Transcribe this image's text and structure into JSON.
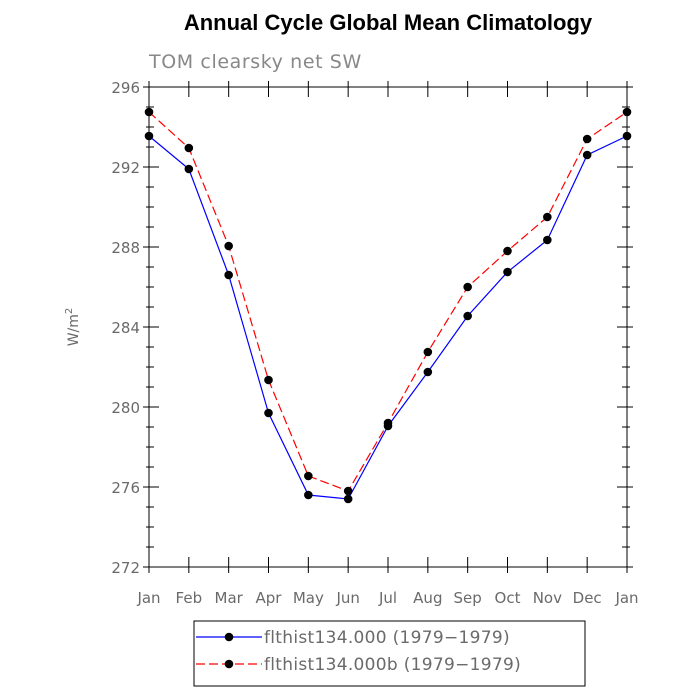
{
  "chart_data": {
    "type": "line",
    "title": "Annual Cycle Global Mean Climatology",
    "subtitle": "TOM clearsky net SW",
    "xlabel": "",
    "ylabel": "W/m",
    "ylabel_superscript": "2",
    "categories": [
      "Jan",
      "Feb",
      "Mar",
      "Apr",
      "May",
      "Jun",
      "Jul",
      "Aug",
      "Sep",
      "Oct",
      "Nov",
      "Dec",
      "Jan"
    ],
    "ylim": [
      272,
      296
    ],
    "yticks": [
      272,
      276,
      280,
      284,
      288,
      292,
      296
    ],
    "y_minor_step": 1,
    "grid": false,
    "legend_position": "bottom",
    "series": [
      {
        "name": "flthist134.000 (1979−1979)",
        "color": "#0000ff",
        "line_style": "solid",
        "marker": "filled-circle",
        "values": [
          293.55,
          291.9,
          286.6,
          279.7,
          275.6,
          275.4,
          279.05,
          281.75,
          284.55,
          286.75,
          288.35,
          292.6,
          293.55
        ]
      },
      {
        "name": "flthist134.000b (1979−1979)",
        "color": "#ff0000",
        "line_style": "dashed",
        "marker": "filled-circle",
        "values": [
          294.75,
          292.95,
          288.05,
          281.35,
          276.55,
          275.8,
          279.2,
          282.75,
          286.0,
          287.8,
          289.5,
          293.4,
          294.75
        ]
      }
    ]
  }
}
